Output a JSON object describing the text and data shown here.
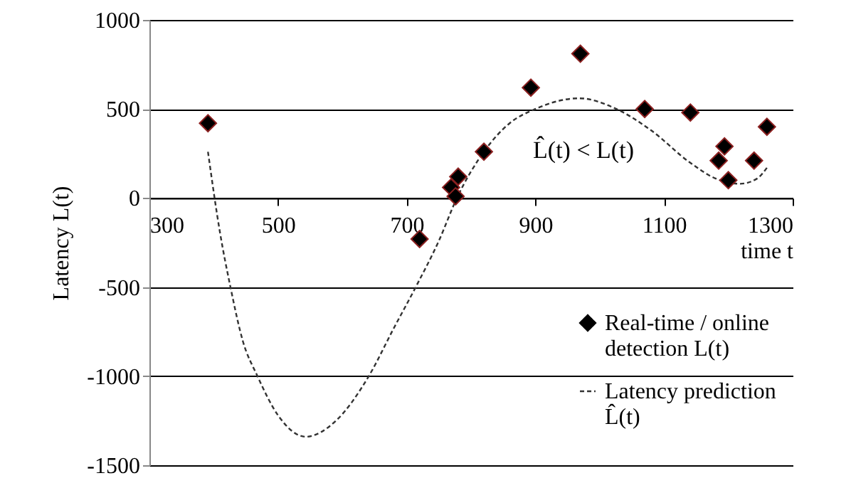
{
  "chart_data": {
    "type": "scatter",
    "xlabel": "time t",
    "ylabel": "Latency L(t)",
    "xlim": [
      300,
      1300
    ],
    "xticks": [
      300,
      500,
      700,
      900,
      1100,
      1300
    ],
    "ylim": [
      -1500,
      1000
    ],
    "yticks": [
      -1500,
      -1000,
      -500,
      0,
      500,
      1000
    ],
    "grid": "y",
    "legend": "bottom right",
    "annotations": [
      "L̂(t) < L(t)"
    ],
    "series": [
      {
        "name": "Real-time / online detection L(t)",
        "marker": "diamond",
        "color": "#000000",
        "x": [
          391,
          720,
          769,
          776,
          780,
          820,
          893,
          970,
          1070,
          1141,
          1185,
          1194,
          1200,
          1240,
          1260
        ],
        "values": [
          420,
          -230,
          60,
          10,
          120,
          260,
          620,
          810,
          500,
          480,
          210,
          290,
          100,
          210,
          400
        ]
      },
      {
        "name": "Latency prediction L̂(t)",
        "type": "line",
        "line_style": "dashed",
        "color": "#333333",
        "x": [
          391,
          410,
          426,
          445,
          468,
          500,
          543,
          590,
          641,
          680,
          714,
          750,
          778,
          820,
          860,
          900,
          968,
          1026,
          1080,
          1140,
          1180,
          1218,
          1245,
          1260
        ],
        "values": [
          260,
          -200,
          -500,
          -800,
          -1000,
          -1220,
          -1340,
          -1250,
          -1000,
          -730,
          -500,
          -240,
          0,
          260,
          420,
          500,
          560,
          500,
          380,
          200,
          110,
          80,
          110,
          170
        ]
      }
    ]
  }
}
